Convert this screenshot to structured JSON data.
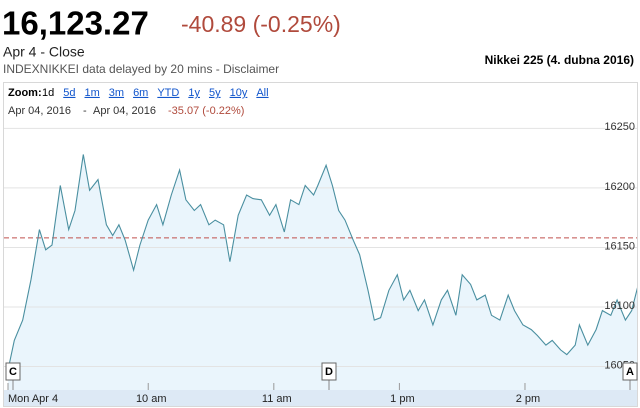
{
  "header": {
    "price": "16,123.27",
    "change": "-40.89 (-0.25%)",
    "date_label": "Apr 4 - Close",
    "source": "INDEXNIKKEI data delayed by 20 mins - Disclaimer",
    "title": "Nikkei 225 (4. dubna 2016)"
  },
  "zoom": {
    "label": "Zoom:",
    "options": [
      "1d",
      "5d",
      "1m",
      "3m",
      "6m",
      "YTD",
      "1y",
      "5y",
      "10y",
      "All"
    ],
    "selected": 0
  },
  "range": {
    "start": "Apr 04, 2016",
    "separator": "-",
    "end": "Apr 04, 2016",
    "change": "-35.07 (-0.22%)"
  },
  "chart_data": {
    "type": "area",
    "x": [
      -7,
      -4,
      0,
      4,
      8,
      11,
      14,
      18,
      22,
      25,
      29,
      32,
      36,
      40,
      43,
      46,
      49,
      53,
      56,
      60,
      64,
      67,
      71,
      75,
      78,
      82,
      85,
      89,
      92,
      96,
      99,
      103,
      107,
      110,
      114,
      118,
      121,
      125,
      128,
      132,
      135,
      139,
      141,
      145,
      148,
      151,
      154,
      158,
      161,
      165,
      168,
      171,
      175,
      179,
      182,
      185,
      189,
      192,
      196,
      200,
      203,
      207,
      210,
      214,
      217,
      221,
      224,
      228,
      232,
      235,
      239,
      243,
      246,
      250,
      253,
      257,
      260,
      264,
      266,
      270,
      274,
      277,
      281,
      284,
      288,
      291,
      294
    ],
    "values": [
      16047,
      16072,
      16089,
      16123,
      16165,
      16148,
      16152,
      16202,
      16165,
      16181,
      16228,
      16198,
      16207,
      16169,
      16160,
      16169,
      16156,
      16131,
      16152,
      16173,
      16186,
      16169,
      16194,
      16215,
      16190,
      16181,
      16186,
      16169,
      16173,
      16169,
      16138,
      16177,
      16194,
      16191,
      16190,
      16177,
      16186,
      16163,
      16190,
      16186,
      16202,
      16194,
      16202,
      16219,
      16202,
      16181,
      16173,
      16156,
      16144,
      16114,
      16089,
      16091,
      16114,
      16127,
      16106,
      16114,
      16097,
      16106,
      16085,
      16106,
      16114,
      16093,
      16127,
      16119,
      16106,
      16110,
      16093,
      16089,
      16110,
      16097,
      16085,
      16081,
      16076,
      16068,
      16072,
      16064,
      16060,
      16068,
      16085,
      16068,
      16081,
      16097,
      16093,
      16106,
      16089,
      16097,
      16118
    ],
    "color": "#4a8fa0",
    "fill": "#eaf5fc",
    "reference_line": 16158,
    "reference_color": "#c0504d",
    "xlim": [
      -7,
      294
    ],
    "xticks": [
      {
        "value": -7,
        "label": "Mon Apr 4"
      },
      {
        "value": 60,
        "label": "10 am"
      },
      {
        "value": 120,
        "label": "11 am"
      },
      {
        "value": 180,
        "label": "1 pm"
      },
      {
        "value": 240,
        "label": "2 pm"
      }
    ],
    "ylim": [
      16032,
      16257
    ],
    "yticks": [
      16050,
      16100,
      16150,
      16200,
      16250
    ],
    "grid": true,
    "flags": [
      "C",
      "D",
      "A"
    ]
  }
}
